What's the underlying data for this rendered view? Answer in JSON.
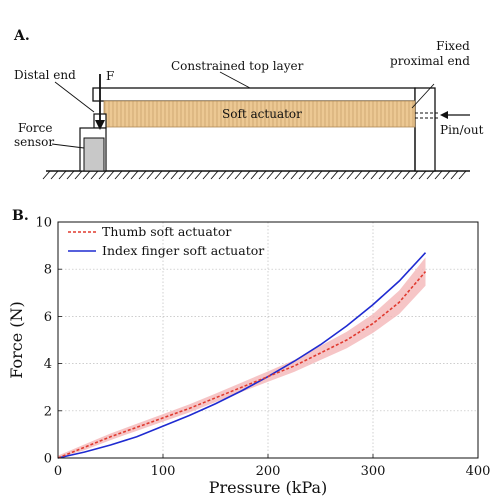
{
  "panel_a": {
    "label": "A.",
    "distal_end": "Distal end",
    "force_arrow": "F",
    "constrained_layer": "Constrained top layer",
    "fixed_line1": "Fixed",
    "fixed_line2": "proximal end",
    "force_sensor_line1": "Force",
    "force_sensor_line2": "sensor",
    "soft_actuator": "Soft actuator",
    "pin_out": "Pin/out"
  },
  "panel_b": {
    "label": "B."
  },
  "colors": {
    "thumb": "#e03a2f",
    "thumb_band": "#f4b6b8",
    "index": "#1f2bd1",
    "actuator_fill": "#e9c48e",
    "sensor_fill": "#c8c8c8"
  },
  "chart_data": {
    "type": "line",
    "xlabel": "Pressure (kPa)",
    "ylabel": "Force (N)",
    "xlim": [
      0,
      400
    ],
    "ylim": [
      0,
      10
    ],
    "xticks": [
      "0",
      "100",
      "200",
      "300",
      "400"
    ],
    "yticks": [
      "0",
      "2",
      "4",
      "6",
      "8",
      "10"
    ],
    "grid": true,
    "legend_position": "top-left",
    "series": [
      {
        "name": "Thumb soft actuator",
        "style": "dashed",
        "x": [
          0,
          25,
          50,
          75,
          100,
          125,
          150,
          175,
          200,
          225,
          250,
          275,
          300,
          325,
          350
        ],
        "y": [
          0.0,
          0.45,
          0.9,
          1.3,
          1.7,
          2.1,
          2.55,
          3.0,
          3.45,
          3.9,
          4.45,
          5.0,
          5.7,
          6.6,
          7.9
        ],
        "band": [
          0.1,
          0.12,
          0.14,
          0.15,
          0.16,
          0.17,
          0.18,
          0.2,
          0.22,
          0.25,
          0.3,
          0.35,
          0.4,
          0.5,
          0.6
        ]
      },
      {
        "name": "Index finger soft actuator",
        "style": "solid",
        "x": [
          0,
          25,
          50,
          75,
          100,
          125,
          150,
          175,
          200,
          225,
          250,
          275,
          300,
          325,
          350
        ],
        "y": [
          0.0,
          0.25,
          0.55,
          0.9,
          1.35,
          1.8,
          2.3,
          2.85,
          3.45,
          4.1,
          4.8,
          5.6,
          6.5,
          7.5,
          8.7
        ]
      }
    ]
  }
}
